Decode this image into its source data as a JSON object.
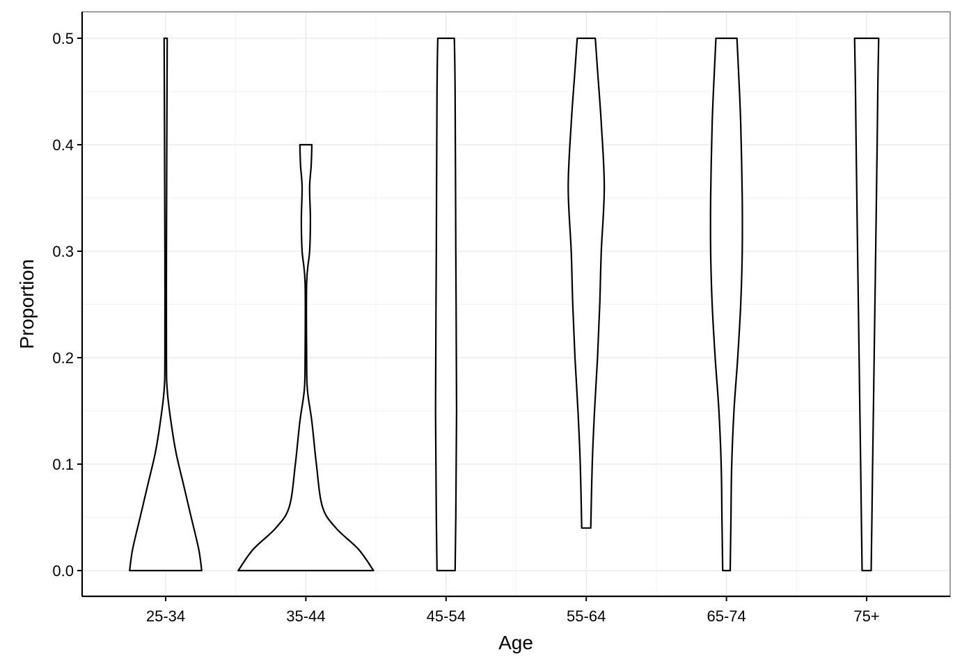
{
  "chart_data": {
    "type": "violin",
    "xlabel": "Age",
    "ylabel": "Proportion",
    "categories": [
      "25-34",
      "35-44",
      "45-54",
      "55-64",
      "65-74",
      "75+"
    ],
    "ylim": [
      -0.025,
      0.525
    ],
    "yticks": [
      0.0,
      0.1,
      0.2,
      0.3,
      0.4,
      0.5
    ],
    "ytick_labels": [
      "0.0",
      "0.1",
      "0.2",
      "0.3",
      "0.4",
      "0.5"
    ],
    "grid": true,
    "violins": [
      {
        "category": "25-34",
        "min": 0.0,
        "max": 0.5,
        "profile": [
          [
            0.0,
            0.48
          ],
          [
            0.02,
            0.44
          ],
          [
            0.05,
            0.34
          ],
          [
            0.08,
            0.24
          ],
          [
            0.11,
            0.14
          ],
          [
            0.14,
            0.07
          ],
          [
            0.17,
            0.02
          ],
          [
            0.2,
            0.01
          ],
          [
            0.3,
            0.01
          ],
          [
            0.4,
            0.015
          ],
          [
            0.5,
            0.02
          ]
        ]
      },
      {
        "category": "35-44",
        "min": 0.0,
        "max": 0.4,
        "profile": [
          [
            0.0,
            0.9
          ],
          [
            0.02,
            0.7
          ],
          [
            0.04,
            0.4
          ],
          [
            0.06,
            0.22
          ],
          [
            0.1,
            0.14
          ],
          [
            0.14,
            0.08
          ],
          [
            0.17,
            0.02
          ],
          [
            0.2,
            0.01
          ],
          [
            0.27,
            0.01
          ],
          [
            0.3,
            0.05
          ],
          [
            0.33,
            0.06
          ],
          [
            0.36,
            0.05
          ],
          [
            0.38,
            0.07
          ],
          [
            0.4,
            0.08
          ]
        ]
      },
      {
        "category": "45-54",
        "min": 0.0,
        "max": 0.5,
        "profile": [
          [
            0.0,
            0.12
          ],
          [
            0.05,
            0.13
          ],
          [
            0.15,
            0.14
          ],
          [
            0.3,
            0.13
          ],
          [
            0.45,
            0.12
          ],
          [
            0.5,
            0.11
          ]
        ]
      },
      {
        "category": "55-64",
        "min": 0.04,
        "max": 0.5,
        "profile": [
          [
            0.04,
            0.06
          ],
          [
            0.1,
            0.08
          ],
          [
            0.15,
            0.11
          ],
          [
            0.2,
            0.15
          ],
          [
            0.25,
            0.18
          ],
          [
            0.3,
            0.2
          ],
          [
            0.36,
            0.24
          ],
          [
            0.42,
            0.2
          ],
          [
            0.47,
            0.15
          ],
          [
            0.5,
            0.12
          ]
        ]
      },
      {
        "category": "65-74",
        "min": 0.0,
        "max": 0.5,
        "profile": [
          [
            0.0,
            0.05
          ],
          [
            0.05,
            0.06
          ],
          [
            0.1,
            0.07
          ],
          [
            0.15,
            0.1
          ],
          [
            0.2,
            0.15
          ],
          [
            0.25,
            0.19
          ],
          [
            0.3,
            0.21
          ],
          [
            0.35,
            0.21
          ],
          [
            0.42,
            0.19
          ],
          [
            0.47,
            0.16
          ],
          [
            0.5,
            0.14
          ]
        ]
      },
      {
        "category": "75+",
        "min": 0.0,
        "max": 0.5,
        "profile": [
          [
            0.0,
            0.06
          ],
          [
            0.05,
            0.07
          ],
          [
            0.1,
            0.08
          ],
          [
            0.2,
            0.1
          ],
          [
            0.3,
            0.12
          ],
          [
            0.4,
            0.14
          ],
          [
            0.46,
            0.15
          ],
          [
            0.5,
            0.16
          ]
        ]
      }
    ]
  }
}
